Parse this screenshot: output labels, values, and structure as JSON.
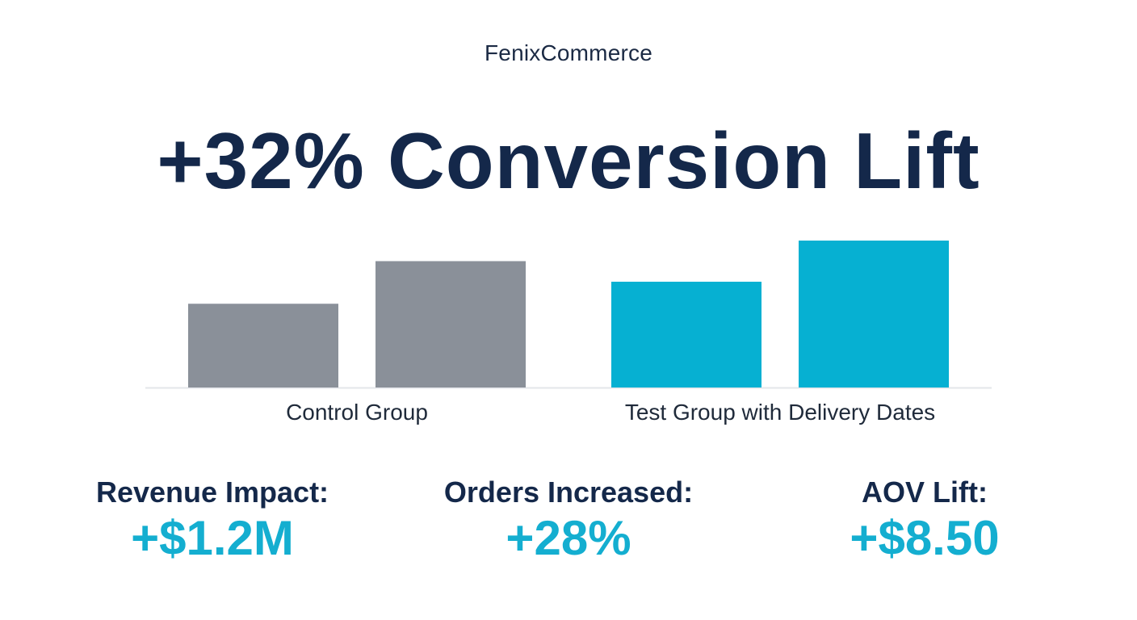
{
  "brand": "FenixCommerce",
  "headline": "+32% Conversion Lift",
  "colors": {
    "control": "#8a9099",
    "test": "#06b0d2",
    "text_dark": "#14284a",
    "accent": "#14aed0",
    "baseline": "#e3e6ea"
  },
  "chart_data": {
    "type": "bar",
    "title": "",
    "xlabel": "",
    "ylabel": "",
    "ylim": [
      0,
      100
    ],
    "grid": false,
    "groups": [
      {
        "label": "Control Group",
        "values": [
          57,
          86
        ],
        "color_key": "control"
      },
      {
        "label": "Test Group with Delivery Dates",
        "values": [
          72,
          100
        ],
        "color_key": "test"
      }
    ]
  },
  "metrics": [
    {
      "label": "Revenue Impact:",
      "value": "+$1.2M"
    },
    {
      "label": "Orders Increased:",
      "value": "+28%"
    },
    {
      "label": "AOV Lift:",
      "value": "+$8.50"
    }
  ]
}
